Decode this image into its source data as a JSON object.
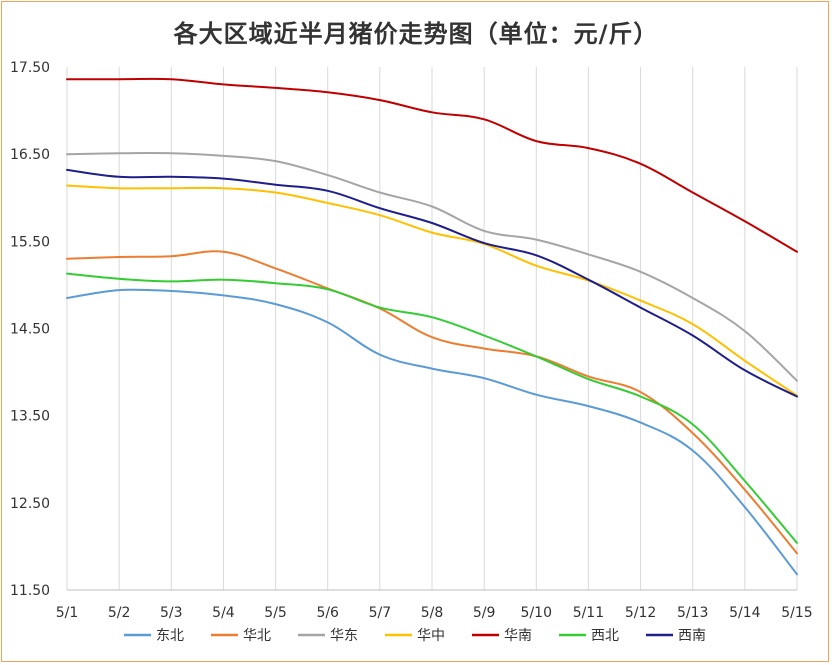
{
  "chart_data": {
    "type": "line",
    "title": "各大区域近半月猪价走势图（单位：元/斤）",
    "xlabel": "",
    "ylabel": "",
    "categories": [
      "5/1",
      "5/2",
      "5/3",
      "5/4",
      "5/5",
      "5/6",
      "5/7",
      "5/8",
      "5/9",
      "5/10",
      "5/11",
      "5/12",
      "5/13",
      "5/14",
      "5/15"
    ],
    "ylim": [
      11.5,
      17.5
    ],
    "yticks": [
      "11.50",
      "12.50",
      "13.50",
      "14.50",
      "15.50",
      "16.50",
      "17.50"
    ],
    "grid": "vertical",
    "legend": "bottom",
    "series": [
      {
        "name": "东北",
        "color": "#5b9bd5",
        "values": [
          14.85,
          14.94,
          14.93,
          14.88,
          14.78,
          14.57,
          14.2,
          14.04,
          13.93,
          13.74,
          13.61,
          13.42,
          13.1,
          12.45,
          11.68
        ]
      },
      {
        "name": "华北",
        "color": "#ed7d31",
        "values": [
          15.3,
          15.32,
          15.33,
          15.38,
          15.19,
          14.96,
          14.73,
          14.4,
          14.27,
          14.18,
          13.95,
          13.77,
          13.3,
          12.65,
          11.92
        ]
      },
      {
        "name": "华东",
        "color": "#a5a5a5",
        "values": [
          16.5,
          16.51,
          16.51,
          16.48,
          16.42,
          16.26,
          16.06,
          15.9,
          15.62,
          15.52,
          15.35,
          15.15,
          14.85,
          14.47,
          13.9
        ]
      },
      {
        "name": "华中",
        "color": "#ffc000",
        "values": [
          16.14,
          16.11,
          16.11,
          16.11,
          16.06,
          15.94,
          15.8,
          15.6,
          15.47,
          15.22,
          15.05,
          14.82,
          14.55,
          14.13,
          13.73
        ]
      },
      {
        "name": "华南",
        "color": "#c00000",
        "values": [
          17.36,
          17.36,
          17.36,
          17.3,
          17.26,
          17.21,
          17.12,
          16.98,
          16.9,
          16.65,
          16.57,
          16.39,
          16.06,
          15.73,
          15.38
        ]
      },
      {
        "name": "西北",
        "color": "#33cc33",
        "values": [
          15.13,
          15.07,
          15.04,
          15.06,
          15.02,
          14.95,
          14.74,
          14.63,
          14.42,
          14.18,
          13.92,
          13.72,
          13.4,
          12.75,
          12.04
        ]
      },
      {
        "name": "西南",
        "color": "#1f1f8c",
        "values": [
          16.32,
          16.24,
          16.24,
          16.22,
          16.15,
          16.08,
          15.88,
          15.71,
          15.48,
          15.34,
          15.06,
          14.74,
          14.42,
          14.02,
          13.72
        ]
      }
    ]
  }
}
